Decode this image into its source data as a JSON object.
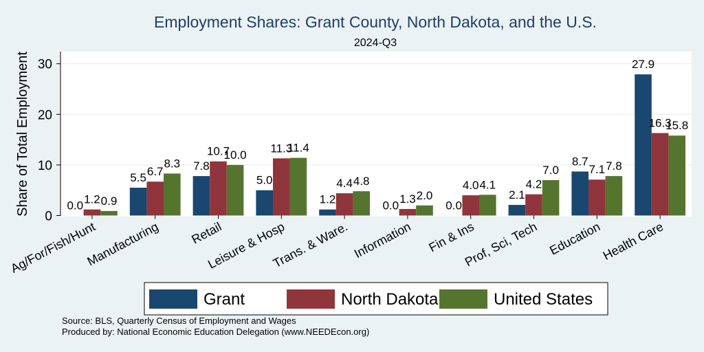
{
  "chart_data": {
    "type": "bar",
    "title": "Employment Shares: Grant County, North Dakota, and the U.S.",
    "subtitle": "2024-Q3",
    "xlabel": "",
    "ylabel": "Share of Total Employment",
    "ylim": [
      0,
      32.5
    ],
    "yticks": [
      "0",
      "10",
      "20",
      "30"
    ],
    "grid": true,
    "legend_position": "bottom",
    "categories": [
      "Ag/For/Fish/Hunt",
      "Manufacturing",
      "Retail",
      "Leisure & Hosp",
      "Trans. & Ware.",
      "Information",
      "Fin & Ins",
      "Prof, Sci, Tech",
      "Education",
      "Health Care"
    ],
    "series": [
      {
        "name": "Grant",
        "color": "#1a476f",
        "values": [
          0.0,
          5.5,
          7.8,
          5.0,
          1.2,
          0.0,
          0.0,
          2.1,
          8.7,
          27.9
        ],
        "labels": [
          "0.0",
          "5.5",
          "7.8",
          "5.0",
          "1.2",
          "0.0",
          "0.0",
          "2.1",
          "8.7",
          "27.9"
        ]
      },
      {
        "name": "North Dakota",
        "color": "#90353b",
        "values": [
          1.2,
          6.7,
          10.7,
          11.3,
          4.4,
          1.3,
          4.0,
          4.2,
          7.1,
          16.3
        ],
        "labels": [
          "1.2",
          "6.7",
          "10.7",
          "11.3",
          "4.4",
          "1.3",
          "4.0",
          "4.2",
          "7.1",
          "16.3"
        ]
      },
      {
        "name": "United States",
        "color": "#55752f",
        "values": [
          0.9,
          8.3,
          10.0,
          11.4,
          4.8,
          2.0,
          4.1,
          7.0,
          7.8,
          15.8
        ],
        "labels": [
          "0.9",
          "8.3",
          "10.0",
          "11.4",
          "4.8",
          "2.0",
          "4.1",
          "7.0",
          "7.8",
          "15.8"
        ]
      }
    ]
  },
  "notes": {
    "source": "Source: BLS, Quarterly Census of Employment and Wages",
    "produced_by": "Produced by: National Economic Education Delegation (www.NEEDEcon.org)"
  }
}
